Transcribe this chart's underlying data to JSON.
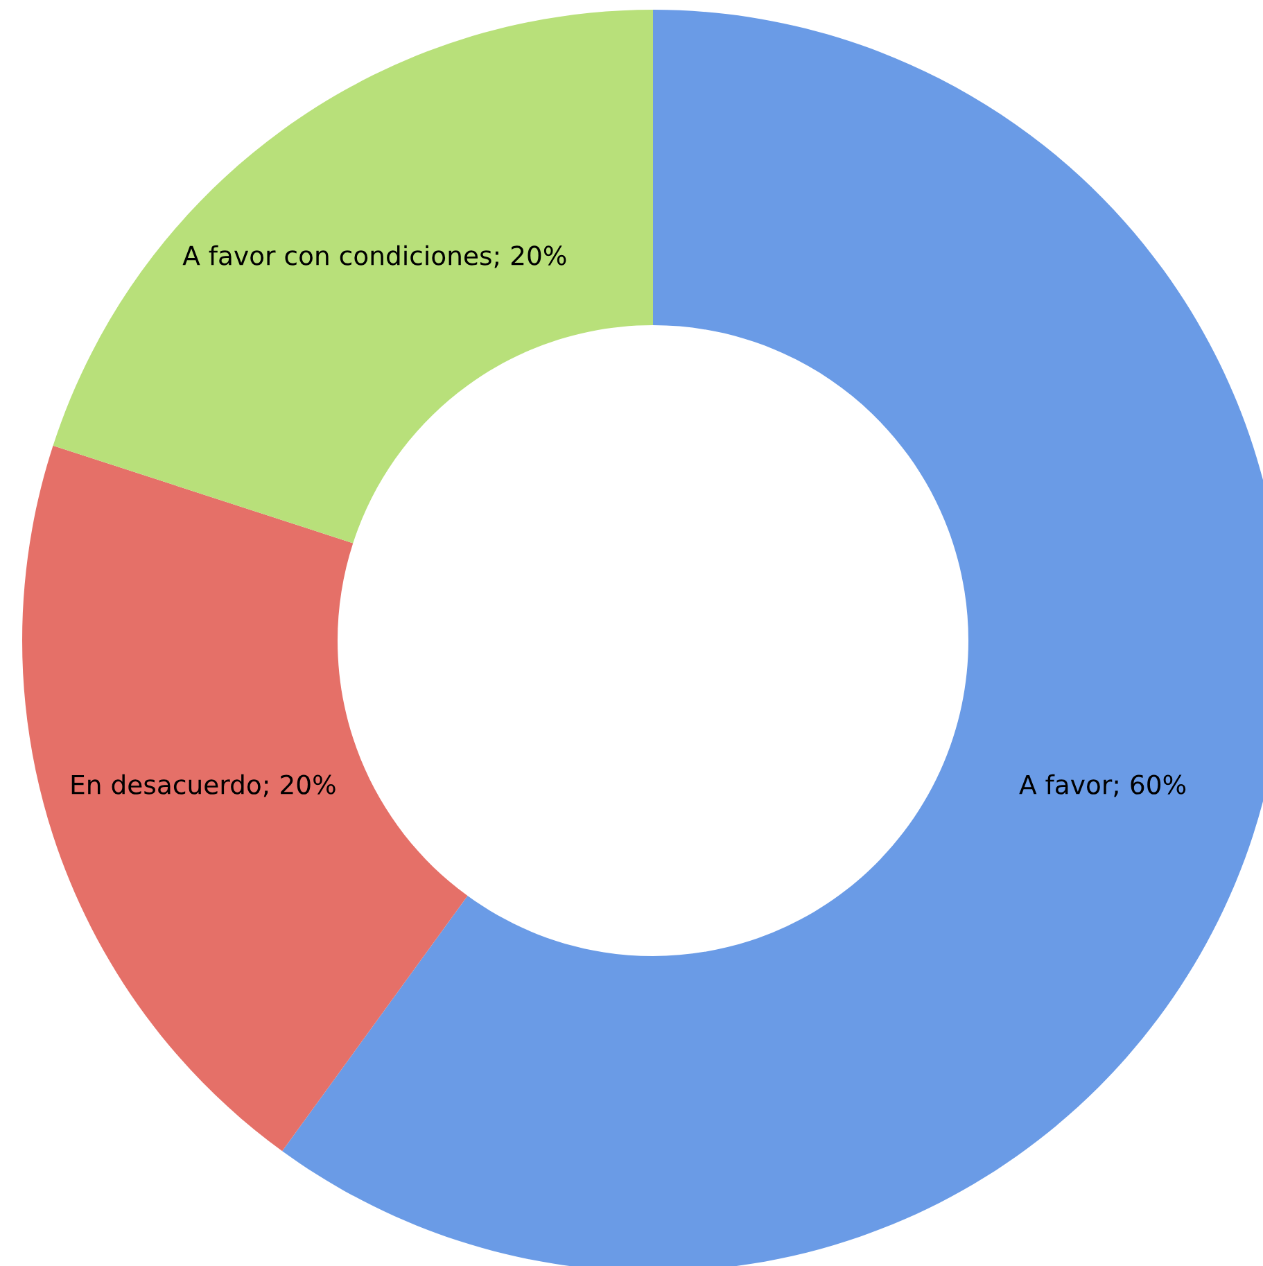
{
  "chart_data": {
    "type": "donut",
    "categories": [
      "A favor",
      "En desacuerdo",
      "A favor con condiciones"
    ],
    "values": [
      60,
      20,
      20
    ],
    "value_labels": [
      "60%",
      "20%",
      "20%"
    ],
    "colors": [
      "#6a9be6",
      "#e57068",
      "#b8e07a"
    ]
  }
}
